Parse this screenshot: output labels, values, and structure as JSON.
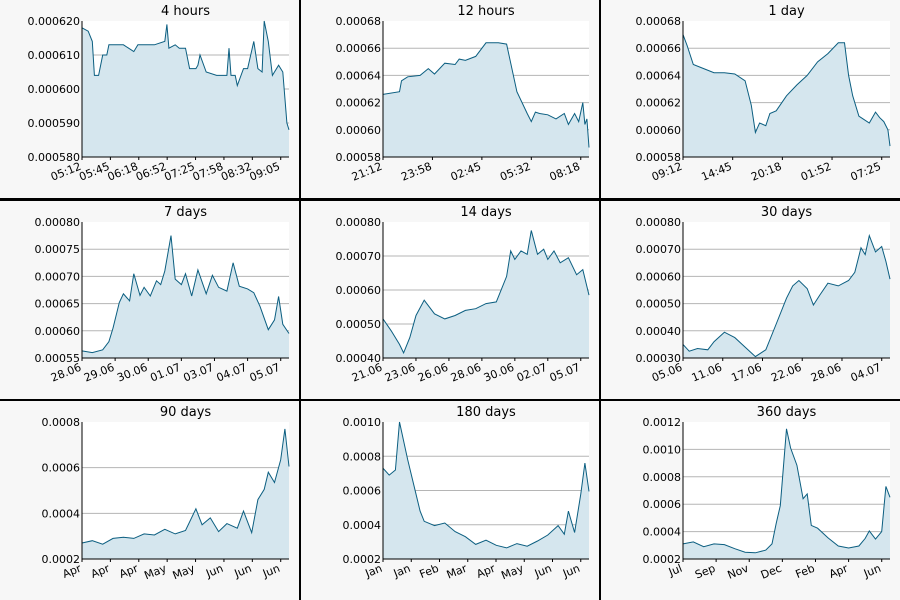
{
  "colors": {
    "line": "#0b5e80",
    "fill": "#d5e6ee",
    "panel": "#f7f7f7",
    "border": "#000000",
    "grid": "#b5b5b5"
  },
  "chart_data": [
    {
      "type": "area",
      "title": "4 hours",
      "grid": true,
      "xlabel": "",
      "ylabel": "",
      "ylim": [
        0.00058,
        0.00062
      ],
      "yticks": [
        "0.000580",
        "0.000590",
        "0.000600",
        "0.000610",
        "0.000620"
      ],
      "xticks": [
        "05:12",
        "05:45",
        "06:18",
        "06:52",
        "07:25",
        "07:58",
        "08:32",
        "09:05"
      ],
      "x": [
        0,
        0.03,
        0.05,
        0.06,
        0.08,
        0.1,
        0.12,
        0.13,
        0.2,
        0.25,
        0.27,
        0.28,
        0.35,
        0.4,
        0.41,
        0.42,
        0.45,
        0.47,
        0.5,
        0.52,
        0.55,
        0.56,
        0.57,
        0.6,
        0.65,
        0.7,
        0.71,
        0.72,
        0.74,
        0.75,
        0.78,
        0.8,
        0.83,
        0.85,
        0.87,
        0.88,
        0.9,
        0.92,
        0.95,
        0.97,
        0.99,
        1
      ],
      "series": [
        {
          "values": [
            0.000618,
            0.000617,
            0.000614,
            0.000604,
            0.000604,
            0.00061,
            0.00061,
            0.000613,
            0.000613,
            0.000611,
            0.000613,
            0.000613,
            0.000613,
            0.000614,
            0.000619,
            0.000612,
            0.000613,
            0.000612,
            0.000612,
            0.000606,
            0.000606,
            0.000607,
            0.00061,
            0.000605,
            0.000604,
            0.000604,
            0.000612,
            0.000604,
            0.000604,
            0.000601,
            0.000606,
            0.000606,
            0.000614,
            0.000606,
            0.000605,
            0.00062,
            0.000614,
            0.000604,
            0.000607,
            0.000605,
            0.00059,
            0.000588
          ]
        }
      ]
    },
    {
      "type": "area",
      "title": "12 hours",
      "grid": true,
      "xlabel": "",
      "ylabel": "",
      "ylim": [
        0.00058,
        0.00068
      ],
      "yticks": [
        "0.00058",
        "0.00060",
        "0.00062",
        "0.00064",
        "0.00066",
        "0.00068"
      ],
      "xticks": [
        "21:12",
        "23:58",
        "02:45",
        "05:32",
        "08:18"
      ],
      "x": [
        0,
        0.08,
        0.09,
        0.12,
        0.18,
        0.22,
        0.25,
        0.3,
        0.35,
        0.37,
        0.4,
        0.45,
        0.5,
        0.55,
        0.56,
        0.6,
        0.65,
        0.7,
        0.72,
        0.74,
        0.76,
        0.8,
        0.84,
        0.88,
        0.9,
        0.93,
        0.95,
        0.97,
        0.98,
        0.99,
        1
      ],
      "series": [
        {
          "values": [
            0.000626,
            0.000628,
            0.000636,
            0.000639,
            0.00064,
            0.000645,
            0.000641,
            0.000649,
            0.000648,
            0.000652,
            0.000651,
            0.000654,
            0.000664,
            0.000664,
            0.000664,
            0.000663,
            0.000628,
            0.000612,
            0.000606,
            0.000613,
            0.000612,
            0.000611,
            0.000608,
            0.000612,
            0.000604,
            0.000612,
            0.000606,
            0.00062,
            0.000604,
            0.000608,
            0.000587
          ]
        }
      ]
    },
    {
      "type": "area",
      "title": "1 day",
      "grid": true,
      "xlabel": "",
      "ylabel": "",
      "ylim": [
        0.00058,
        0.00068
      ],
      "yticks": [
        "0.00058",
        "0.00060",
        "0.00062",
        "0.00064",
        "0.00066",
        "0.00068"
      ],
      "xticks": [
        "09:12",
        "14:45",
        "20:18",
        "01:52",
        "07:25"
      ],
      "x": [
        0,
        0.02,
        0.05,
        0.1,
        0.15,
        0.2,
        0.25,
        0.3,
        0.33,
        0.35,
        0.37,
        0.4,
        0.42,
        0.45,
        0.5,
        0.55,
        0.6,
        0.65,
        0.7,
        0.75,
        0.78,
        0.8,
        0.82,
        0.85,
        0.87,
        0.9,
        0.93,
        0.95,
        0.97,
        0.99,
        1
      ],
      "series": [
        {
          "values": [
            0.00067,
            0.000662,
            0.000648,
            0.000645,
            0.000642,
            0.000642,
            0.000641,
            0.000636,
            0.000618,
            0.000598,
            0.000605,
            0.000603,
            0.000612,
            0.000614,
            0.000625,
            0.000633,
            0.00064,
            0.00065,
            0.000656,
            0.000664,
            0.000664,
            0.00064,
            0.000625,
            0.00061,
            0.000608,
            0.000605,
            0.000613,
            0.000609,
            0.000606,
            0.0006,
            0.000588
          ]
        }
      ]
    },
    {
      "type": "area",
      "title": "7 days",
      "grid": true,
      "xlabel": "",
      "ylabel": "",
      "ylim": [
        0.00055,
        0.0008
      ],
      "yticks": [
        "0.00055",
        "0.00060",
        "0.00065",
        "0.00070",
        "0.00075",
        "0.00080"
      ],
      "xticks": [
        "28.06",
        "29.06",
        "30.06",
        "01.07",
        "03.07",
        "04.07",
        "05.07"
      ],
      "x": [
        0,
        0.05,
        0.1,
        0.13,
        0.15,
        0.18,
        0.2,
        0.23,
        0.25,
        0.28,
        0.3,
        0.33,
        0.36,
        0.38,
        0.4,
        0.43,
        0.45,
        0.48,
        0.5,
        0.53,
        0.56,
        0.6,
        0.63,
        0.66,
        0.7,
        0.73,
        0.76,
        0.8,
        0.83,
        0.86,
        0.9,
        0.93,
        0.95,
        0.97,
        1
      ],
      "series": [
        {
          "values": [
            0.000563,
            0.00056,
            0.000565,
            0.00058,
            0.000605,
            0.000652,
            0.000668,
            0.000655,
            0.000705,
            0.000665,
            0.00068,
            0.000664,
            0.000692,
            0.000685,
            0.00071,
            0.000775,
            0.000695,
            0.000685,
            0.000705,
            0.000664,
            0.000712,
            0.000668,
            0.000702,
            0.00068,
            0.000673,
            0.000725,
            0.000682,
            0.000677,
            0.00067,
            0.000645,
            0.000602,
            0.00062,
            0.000663,
            0.000612,
            0.000595
          ]
        }
      ]
    },
    {
      "type": "area",
      "title": "14 days",
      "grid": true,
      "xlabel": "",
      "ylabel": "",
      "ylim": [
        0.0004,
        0.0008
      ],
      "yticks": [
        "0.00040",
        "0.00050",
        "0.00060",
        "0.00070",
        "0.00080"
      ],
      "xticks": [
        "21.06",
        "23.06",
        "26.06",
        "28.06",
        "30.06",
        "02.07",
        "05.07"
      ],
      "x": [
        0,
        0.04,
        0.08,
        0.1,
        0.13,
        0.16,
        0.2,
        0.25,
        0.3,
        0.35,
        0.4,
        0.45,
        0.5,
        0.55,
        0.6,
        0.62,
        0.64,
        0.67,
        0.7,
        0.72,
        0.75,
        0.78,
        0.8,
        0.83,
        0.86,
        0.9,
        0.94,
        0.97,
        1
      ],
      "series": [
        {
          "values": [
            0.000515,
            0.00048,
            0.00044,
            0.000415,
            0.00046,
            0.000525,
            0.00057,
            0.00053,
            0.000515,
            0.000525,
            0.00054,
            0.000545,
            0.00056,
            0.000565,
            0.00064,
            0.000715,
            0.00069,
            0.000715,
            0.000705,
            0.000775,
            0.000705,
            0.00072,
            0.00069,
            0.000715,
            0.00068,
            0.000695,
            0.000645,
            0.00066,
            0.000585
          ]
        }
      ]
    },
    {
      "type": "area",
      "title": "30 days",
      "grid": true,
      "xlabel": "",
      "ylabel": "",
      "ylim": [
        0.0003,
        0.0008
      ],
      "yticks": [
        "0.00030",
        "0.00040",
        "0.00050",
        "0.00060",
        "0.00070",
        "0.00080"
      ],
      "xticks": [
        "05.06",
        "11.06",
        "17.06",
        "22.06",
        "28.06",
        "04.07"
      ],
      "x": [
        0,
        0.03,
        0.07,
        0.12,
        0.15,
        0.2,
        0.25,
        0.3,
        0.35,
        0.4,
        0.45,
        0.5,
        0.53,
        0.56,
        0.6,
        0.63,
        0.66,
        0.7,
        0.75,
        0.8,
        0.83,
        0.86,
        0.88,
        0.9,
        0.93,
        0.96,
        0.98,
        1
      ],
      "series": [
        {
          "values": [
            0.00035,
            0.000325,
            0.000335,
            0.00033,
            0.00036,
            0.000395,
            0.000375,
            0.00034,
            0.000305,
            0.00033,
            0.000425,
            0.00052,
            0.000565,
            0.000585,
            0.000555,
            0.000495,
            0.00053,
            0.000575,
            0.000565,
            0.000585,
            0.000615,
            0.000705,
            0.00068,
            0.00075,
            0.00069,
            0.00071,
            0.000655,
            0.00059
          ]
        }
      ]
    },
    {
      "type": "area",
      "title": "90 days",
      "grid": true,
      "xlabel": "",
      "ylabel": "",
      "ylim": [
        0.0002,
        0.0008
      ],
      "yticks": [
        "0.0002",
        "0.0004",
        "0.0006",
        "0.0008"
      ],
      "xticks": [
        "Apr",
        "Apr",
        "Apr",
        "May",
        "May",
        "Jun",
        "Jun",
        "Jun"
      ],
      "x": [
        0,
        0.05,
        0.1,
        0.15,
        0.2,
        0.25,
        0.3,
        0.35,
        0.4,
        0.45,
        0.5,
        0.55,
        0.58,
        0.62,
        0.66,
        0.7,
        0.75,
        0.78,
        0.82,
        0.85,
        0.88,
        0.9,
        0.93,
        0.96,
        0.98,
        1
      ],
      "series": [
        {
          "values": [
            0.00027,
            0.00028,
            0.000265,
            0.00029,
            0.000295,
            0.00029,
            0.00031,
            0.000305,
            0.00033,
            0.00031,
            0.000325,
            0.00042,
            0.00035,
            0.00038,
            0.00032,
            0.000355,
            0.000335,
            0.00041,
            0.000315,
            0.00046,
            0.000505,
            0.00058,
            0.000535,
            0.000635,
            0.00077,
            0.000605
          ]
        }
      ]
    },
    {
      "type": "area",
      "title": "180 days",
      "grid": true,
      "xlabel": "",
      "ylabel": "",
      "ylim": [
        0.0002,
        0.001
      ],
      "yticks": [
        "0.0002",
        "0.0004",
        "0.0006",
        "0.0008",
        "0.0010"
      ],
      "xticks": [
        "Jan",
        "Jan",
        "Feb",
        "Mar",
        "Apr",
        "May",
        "Jun",
        "Jun"
      ],
      "x": [
        0,
        0.03,
        0.06,
        0.08,
        0.12,
        0.15,
        0.18,
        0.2,
        0.25,
        0.3,
        0.35,
        0.4,
        0.45,
        0.5,
        0.55,
        0.6,
        0.65,
        0.7,
        0.75,
        0.8,
        0.85,
        0.88,
        0.9,
        0.93,
        0.96,
        0.98,
        1
      ],
      "series": [
        {
          "values": [
            0.00073,
            0.00069,
            0.00072,
            0.001,
            0.00078,
            0.00063,
            0.00048,
            0.00042,
            0.000395,
            0.00041,
            0.00036,
            0.00033,
            0.000285,
            0.00031,
            0.00028,
            0.000265,
            0.00029,
            0.000275,
            0.000305,
            0.00034,
            0.000395,
            0.000345,
            0.00048,
            0.000355,
            0.00058,
            0.00076,
            0.000595
          ]
        }
      ]
    },
    {
      "type": "area",
      "title": "360 days",
      "grid": true,
      "xlabel": "",
      "ylabel": "",
      "ylim": [
        0.0002,
        0.0012
      ],
      "yticks": [
        "0.0002",
        "0.0004",
        "0.0006",
        "0.0008",
        "0.0010",
        "0.0012"
      ],
      "xticks": [
        "Jul",
        "Sep",
        "Nov",
        "Dec",
        "Feb",
        "Apr",
        "Jun"
      ],
      "x": [
        0,
        0.05,
        0.1,
        0.15,
        0.2,
        0.25,
        0.3,
        0.35,
        0.4,
        0.43,
        0.45,
        0.47,
        0.5,
        0.52,
        0.55,
        0.58,
        0.6,
        0.62,
        0.65,
        0.7,
        0.75,
        0.8,
        0.85,
        0.88,
        0.9,
        0.93,
        0.96,
        0.98,
        1
      ],
      "series": [
        {
          "values": [
            0.00031,
            0.000325,
            0.00029,
            0.00031,
            0.000305,
            0.000275,
            0.00025,
            0.000245,
            0.000265,
            0.00031,
            0.00046,
            0.00059,
            0.00115,
            0.00101,
            0.000885,
            0.00064,
            0.000675,
            0.000445,
            0.000425,
            0.000355,
            0.000295,
            0.00028,
            0.000295,
            0.00035,
            0.000405,
            0.000345,
            0.0004,
            0.00073,
            0.00065
          ]
        }
      ]
    }
  ]
}
